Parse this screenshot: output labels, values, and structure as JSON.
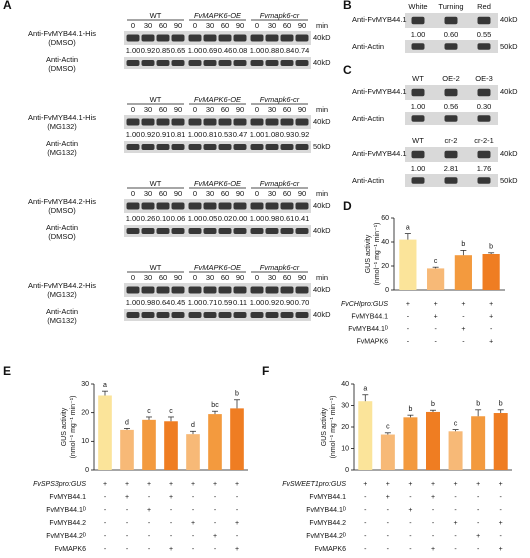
{
  "panels": {
    "A": {
      "label": "A",
      "groups": [
        "WT",
        "FvMAPK6-OE",
        "Fvmapk6-cr"
      ],
      "times": [
        "0",
        "30",
        "60",
        "90"
      ],
      "unit": "min",
      "blocks": [
        {
          "target": {
            "label": [
              "Anti-FvMYB44.1-His",
              "(DMSO)"
            ],
            "values": [
              "1.00",
              "0.92",
              "0.85",
              "0.65",
              "1.00",
              "0.69",
              "0.46",
              "0.08",
              "1.00",
              "0.88",
              "0.84",
              "0.74"
            ],
            "kd": "40kD"
          },
          "control": {
            "label": [
              "Anti-Actin",
              "(DMSO)"
            ],
            "kd": "40kD"
          }
        },
        {
          "target": {
            "label": [
              "Anti-FvMYB44.1-His",
              "(MG132)"
            ],
            "values": [
              "1.00",
              "0.92",
              "0.91",
              "0.81",
              "1.00",
              "0.81",
              "0.53",
              "0.47",
              "1.00",
              "1.08",
              "0.93",
              "0.92"
            ],
            "kd": "40kD"
          },
          "control": {
            "label": [
              "Anti-Actin",
              "(MG132)"
            ],
            "kd": "50kD"
          }
        },
        {
          "target": {
            "label": [
              "Anti-FvMYB44.2-His",
              "(DMSO)"
            ],
            "values": [
              "1.00",
              "0.26",
              "0.10",
              "0.06",
              "1.00",
              "0.05",
              "0.02",
              "0.00",
              "1.00",
              "0.98",
              "0.61",
              "0.41"
            ],
            "kd": "40kD"
          },
          "control": {
            "label": [
              "Anti-Actin",
              "(DMSO)"
            ],
            "kd": "40kD"
          }
        },
        {
          "target": {
            "label": [
              "Anti-FvMYB44.2-His",
              "(MG132)"
            ],
            "values": [
              "1.00",
              "0.98",
              "0.64",
              "0.45",
              "1.00",
              "0.71",
              "0.59",
              "0.11",
              "1.00",
              "0.92",
              "0.90",
              "0.70"
            ],
            "kd": "40kD"
          },
          "control": {
            "label": [
              "Anti-Actin",
              "(MG132)"
            ],
            "kd": "40kD"
          }
        }
      ]
    },
    "B": {
      "label": "B",
      "blocks": [
        {
          "lanes": [
            "White",
            "Turning",
            "Red"
          ],
          "target": {
            "label": "Anti-FvMYB44.1",
            "values": [
              "1.00",
              "0.60",
              "0.55"
            ],
            "kd": "40kD"
          },
          "control": {
            "label": "Anti-Actin",
            "kd": "50kD"
          }
        }
      ]
    },
    "C": {
      "label": "C",
      "blocks": [
        {
          "lanes": [
            "WT",
            "OE-2",
            "OE-3"
          ],
          "target": {
            "label": "Anti-FvMYB44.1",
            "values": [
              "1.00",
              "0.56",
              "0.30"
            ],
            "kd": "40kD"
          },
          "control": {
            "label": "Anti-Actin"
          }
        },
        {
          "lanes": [
            "WT",
            "cr-2",
            "cr-2-1"
          ],
          "target": {
            "label": "Anti-FvMYB44.1",
            "values": [
              "1.00",
              "2.81",
              "1.76"
            ],
            "kd": "40kD"
          },
          "control": {
            "label": "Anti-Actin",
            "kd": "50kD"
          }
        }
      ]
    }
  },
  "chart_data": [
    {
      "label": "D",
      "type": "bar",
      "ylabel": [
        "GUS activity",
        "(nmol⁻¹ mg⁻¹ min⁻¹)"
      ],
      "ylim": [
        0,
        60
      ],
      "yticks": [
        0,
        20,
        40,
        60
      ],
      "values": [
        42,
        18,
        29,
        30
      ],
      "errors": [
        5,
        1,
        4,
        1
      ],
      "colors": [
        "#fbe49a",
        "#f7b977",
        "#f39a3e",
        "#ef7d22"
      ],
      "letters": [
        "a",
        "c",
        "b",
        "b"
      ],
      "conditions": [
        {
          "name": "FvCHIpro:GUS",
          "signs": [
            "+",
            "+",
            "+",
            "+"
          ]
        },
        {
          "name": "FvMYB44.1",
          "signs": [
            "-",
            "+",
            "-",
            "+"
          ]
        },
        {
          "name": "FvMYB44.1ᴰ",
          "signs": [
            "-",
            "-",
            "+",
            "-"
          ]
        },
        {
          "name": "FvMAPK6",
          "signs": [
            "-",
            "-",
            "-",
            "+"
          ]
        }
      ]
    },
    {
      "label": "E",
      "type": "bar",
      "ylabel": [
        "GUS activity",
        "(nmol⁻¹ mg⁻¹ min⁻¹)"
      ],
      "ylim": [
        0,
        30
      ],
      "yticks": [
        0,
        10,
        20,
        30
      ],
      "values": [
        26,
        14,
        17.5,
        17,
        12.5,
        19.5,
        21.5
      ],
      "errors": [
        1.5,
        0.5,
        1,
        1.5,
        1,
        1,
        3
      ],
      "colors": [
        "#fbe49a",
        "#f7b977",
        "#f39a3e",
        "#ef7d22",
        "#f7b977",
        "#f39a3e",
        "#ef7d22"
      ],
      "letters": [
        "a",
        "d",
        "c",
        "c",
        "d",
        "bc",
        "b"
      ],
      "conditions": [
        {
          "name": "FvSPS3pro:GUS",
          "signs": [
            "+",
            "+",
            "+",
            "+",
            "+",
            "+",
            "+"
          ]
        },
        {
          "name": "FvMYB44.1",
          "signs": [
            "-",
            "+",
            "-",
            "+",
            "-",
            "-",
            "-"
          ]
        },
        {
          "name": "FvMYB44.1ᴰ",
          "signs": [
            "-",
            "-",
            "+",
            "-",
            "-",
            "-",
            "-"
          ]
        },
        {
          "name": "FvMYB44.2",
          "signs": [
            "-",
            "-",
            "-",
            "-",
            "+",
            "-",
            "+"
          ]
        },
        {
          "name": "FvMYB44.2ᴰ",
          "signs": [
            "-",
            "-",
            "-",
            "-",
            "-",
            "+",
            "-"
          ]
        },
        {
          "name": "FvMAPK6",
          "signs": [
            "-",
            "-",
            "-",
            "+",
            "-",
            "-",
            "+"
          ]
        }
      ]
    },
    {
      "label": "F",
      "type": "bar",
      "ylabel": [
        "GUS activity",
        "(nmol⁻¹ mg⁻¹ min⁻¹)"
      ],
      "ylim": [
        0,
        40
      ],
      "yticks": [
        0,
        10,
        20,
        30,
        40
      ],
      "values": [
        32,
        16.5,
        24.5,
        27,
        18,
        25,
        26.5
      ],
      "errors": [
        3,
        0.8,
        1,
        0.8,
        0.8,
        3,
        1.5
      ],
      "colors": [
        "#fbe49a",
        "#f7b977",
        "#f39a3e",
        "#ef7d22",
        "#f7b977",
        "#f39a3e",
        "#ef7d22"
      ],
      "letters": [
        "a",
        "c",
        "b",
        "b",
        "c",
        "b",
        "b"
      ],
      "conditions": [
        {
          "name": "FvSWEET1pro:GUS",
          "signs": [
            "+",
            "+",
            "+",
            "+",
            "+",
            "+",
            "+"
          ]
        },
        {
          "name": "FvMYB44.1",
          "signs": [
            "-",
            "+",
            "-",
            "+",
            "-",
            "-",
            "-"
          ]
        },
        {
          "name": "FvMYB44.1ᴰ",
          "signs": [
            "-",
            "-",
            "+",
            "-",
            "-",
            "-",
            "-"
          ]
        },
        {
          "name": "FvMYB44.2",
          "signs": [
            "-",
            "-",
            "-",
            "-",
            "+",
            "-",
            "+"
          ]
        },
        {
          "name": "FvMYB44.2ᴰ",
          "signs": [
            "-",
            "-",
            "-",
            "-",
            "-",
            "+",
            "-"
          ]
        },
        {
          "name": "FvMAPK6",
          "signs": [
            "-",
            "-",
            "-",
            "+",
            "-",
            "-",
            "+"
          ]
        }
      ]
    }
  ]
}
